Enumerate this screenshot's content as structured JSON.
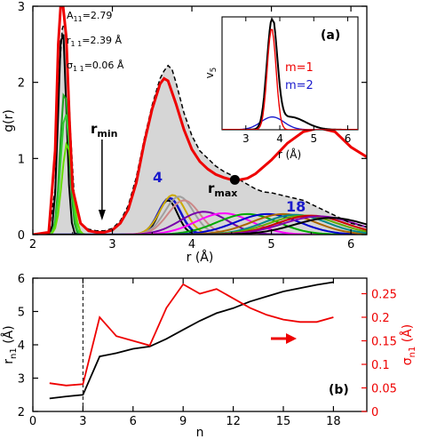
{
  "chart_data": [
    {
      "panel": "(a)",
      "type": "line",
      "xlabel": "r (Å)",
      "ylabel": "g(r)",
      "xlim": [
        2,
        6.2
      ],
      "ylim": [
        0,
        3
      ],
      "xticks": [
        "2",
        "3",
        "4",
        "5",
        "6"
      ],
      "yticks": [
        "0",
        "1",
        "2",
        "3"
      ],
      "annotations": {
        "a11": "A",
        "a11_sub": "11",
        "a11_val": "=2.79",
        "r11": "r",
        "r11_sub": "1 1",
        "r11_val": "=2.39 Å",
        "s11": "σ",
        "s11_sub": "1 1",
        "s11_val": "=0.06 Å",
        "rmin": "r",
        "rmin_sub": "min",
        "rmax": "r",
        "rmax_sub": "max",
        "n_first": "4",
        "n_last": "18"
      },
      "markers": {
        "rmin_x": 2.87,
        "rmax_x": 4.54,
        "rmax_y": 0.72
      },
      "series": [
        {
          "style": "gray-fill-dashed",
          "x": [
            2.0,
            2.2,
            2.28,
            2.33,
            2.37,
            2.4,
            2.43,
            2.47,
            2.52,
            2.6,
            2.7,
            2.8,
            2.9,
            3.0,
            3.1,
            3.2,
            3.3,
            3.4,
            3.5,
            3.6,
            3.65,
            3.7,
            3.75,
            3.8,
            3.9,
            4.0,
            4.1,
            4.2,
            4.3,
            4.4,
            4.5,
            4.6,
            4.7,
            4.8,
            4.9,
            5.0,
            5.2,
            5.4,
            5.6,
            5.8,
            6.0,
            6.2
          ],
          "y": [
            0,
            0.01,
            0.6,
            2.1,
            2.7,
            2.8,
            2.4,
            1.4,
            0.5,
            0.15,
            0.07,
            0.05,
            0.05,
            0.08,
            0.18,
            0.38,
            0.75,
            1.25,
            1.7,
            2.05,
            2.15,
            2.22,
            2.17,
            2.0,
            1.6,
            1.3,
            1.1,
            1.0,
            0.9,
            0.83,
            0.78,
            0.72,
            0.66,
            0.6,
            0.56,
            0.55,
            0.5,
            0.45,
            0.35,
            0.25,
            0.15,
            0.1
          ]
        },
        {
          "style": "red-thick",
          "x": [
            2.0,
            2.2,
            2.28,
            2.32,
            2.35,
            2.38,
            2.42,
            2.46,
            2.5,
            2.6,
            2.7,
            2.8,
            2.9,
            3.0,
            3.1,
            3.2,
            3.3,
            3.4,
            3.5,
            3.6,
            3.65,
            3.7,
            3.8,
            3.9,
            4.0,
            4.1,
            4.2,
            4.3,
            4.4,
            4.5,
            4.6,
            4.7,
            4.8,
            5.0,
            5.2,
            5.4,
            5.6,
            5.8,
            6.0,
            6.2
          ],
          "y": [
            0,
            0.03,
            1.1,
            2.5,
            3.0,
            3.0,
            2.6,
            1.5,
            0.6,
            0.15,
            0.05,
            0.03,
            0.03,
            0.06,
            0.15,
            0.33,
            0.68,
            1.2,
            1.65,
            1.98,
            2.05,
            2.02,
            1.72,
            1.38,
            1.12,
            0.96,
            0.86,
            0.79,
            0.75,
            0.72,
            0.72,
            0.74,
            0.8,
            0.98,
            1.2,
            1.35,
            1.4,
            1.35,
            1.15,
            1.02
          ]
        }
      ],
      "neighbor_peaks": {
        "colors": [
          "#000000",
          "#1e9e1e",
          "#33cc33",
          "#66dd00",
          "#000000",
          "#1515c9",
          "#ccaa00",
          "#a0a0a0",
          "#cc8888",
          "#7700aa",
          "#ff00ff",
          "#00aa00",
          "#0000cc",
          "#aa6600",
          "#008888",
          "#66aa00",
          "#cc0000",
          "#8800aa",
          "#000000"
        ],
        "centers": [
          2.37,
          2.4,
          2.41,
          2.43,
          3.7,
          3.72,
          3.76,
          3.84,
          3.9,
          4.15,
          4.4,
          4.7,
          4.95,
          5.15,
          5.3,
          5.4,
          5.5,
          5.6,
          5.75
        ],
        "widths": [
          0.05,
          0.055,
          0.06,
          0.065,
          0.12,
          0.14,
          0.16,
          0.18,
          0.2,
          0.3,
          0.35,
          0.38,
          0.4,
          0.4,
          0.4,
          0.42,
          0.42,
          0.45,
          0.45
        ],
        "heights": [
          2.75,
          1.9,
          1.6,
          1.2,
          0.45,
          0.48,
          0.52,
          0.5,
          0.45,
          0.3,
          0.28,
          0.27,
          0.27,
          0.27,
          0.26,
          0.25,
          0.25,
          0.24,
          0.22
        ]
      },
      "inset": {
        "label": "(a)",
        "ylabel": "v",
        "ylabel_sub": "5",
        "xlabel": "r (Å)",
        "xticks": [
          "3",
          "4",
          "5",
          "6"
        ],
        "xlim": [
          2.3,
          6.3
        ],
        "legend": [
          {
            "name": "m=1",
            "color": "#ee0000"
          },
          {
            "name": "m=2",
            "color": "#1a1acc"
          }
        ]
      }
    },
    {
      "panel": "(b)",
      "type": "line",
      "xlabel": "n",
      "ylabel": "r",
      "ylabel_sub": "n1",
      "ylabel_unit": " (Å)",
      "y2label": "σ",
      "y2label_sub": "n1",
      "y2label_unit": " (Å)",
      "xlim": [
        0,
        20
      ],
      "ylim": [
        2,
        6
      ],
      "y2lim": [
        0,
        0.283
      ],
      "xticks": [
        0,
        3,
        6,
        9,
        12,
        15,
        18
      ],
      "yticks": [
        2,
        3,
        4,
        5,
        6
      ],
      "y2ticks": [
        "0",
        "0.05",
        "0.1",
        "0.15",
        "0.2",
        "0.25"
      ],
      "vline_x": 3,
      "series": [
        {
          "axis": "left",
          "color": "#000000",
          "x": [
            1,
            2,
            3,
            4,
            5,
            6,
            7,
            8,
            9,
            10,
            11,
            12,
            13,
            14,
            15,
            16,
            17,
            18
          ],
          "y": [
            2.39,
            2.45,
            2.5,
            3.65,
            3.75,
            3.88,
            3.95,
            4.18,
            4.45,
            4.72,
            4.95,
            5.1,
            5.3,
            5.45,
            5.6,
            5.7,
            5.8,
            5.88
          ]
        },
        {
          "axis": "right",
          "color": "#ee0000",
          "x": [
            1,
            2,
            3,
            4,
            5,
            6,
            7,
            8,
            9,
            10,
            11,
            12,
            13,
            14,
            15,
            16,
            17,
            18
          ],
          "y": [
            0.06,
            0.055,
            0.058,
            0.2,
            0.16,
            0.15,
            0.14,
            0.22,
            0.27,
            0.25,
            0.26,
            0.24,
            0.22,
            0.205,
            0.195,
            0.19,
            0.19,
            0.2
          ]
        }
      ],
      "panel_label": "(b)"
    }
  ]
}
